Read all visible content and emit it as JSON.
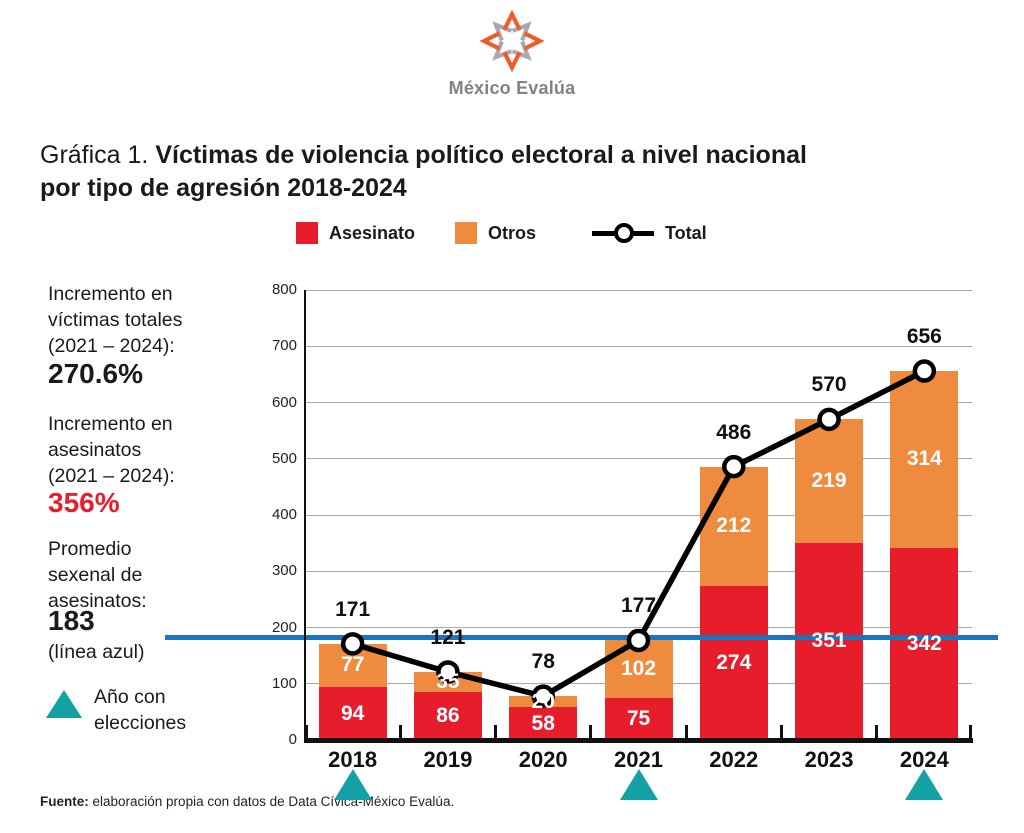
{
  "brand": {
    "name": "México Evalúa"
  },
  "title": {
    "prefix": "Gráfica 1. ",
    "bold_line1": "Víctimas de violencia político electoral a nivel nacional",
    "bold_line2": "por tipo de agresión 2018-2024"
  },
  "legend": {
    "asesinato": "Asesinato",
    "otros": "Otros",
    "total": "Total"
  },
  "annotations": {
    "block1_label": "Incremento en\nvíctimas totales\n(2021 – 2024):",
    "block1_value": "270.6%",
    "block2_label": "Incremento en\nasesinatos\n(2021 – 2024):",
    "block2_value": "356%",
    "block3_label": "Promedio\nsexenal de\nasesinatos:",
    "block3_value": "183",
    "block3_suffix": "(línea azul)",
    "election_label": "Año con\nelecciones"
  },
  "footer": {
    "bold": "Fuente:",
    "text": " elaboración propia con datos de Data Cívica-México Evalúa."
  },
  "colors": {
    "asesinato": "#E71D2C",
    "otros": "#EF8B3E",
    "total_line": "#000000",
    "average_line": "#1C75BC",
    "election_marker": "#14A1A6",
    "gridline": "#A9A9A9",
    "logo_orange": "#F15A29",
    "logo_gray": "#A7A9AC"
  },
  "chart_data": {
    "type": "bar",
    "stacked": true,
    "title": "Víctimas de violencia político electoral a nivel nacional por tipo de agresión 2018-2024",
    "categories": [
      "2018",
      "2019",
      "2020",
      "2021",
      "2022",
      "2023",
      "2024"
    ],
    "series": [
      {
        "name": "Asesinato",
        "values": [
          94,
          86,
          58,
          75,
          274,
          351,
          342
        ]
      },
      {
        "name": "Otros",
        "values": [
          77,
          35,
          20,
          102,
          212,
          219,
          314
        ]
      }
    ],
    "total_line": {
      "name": "Total",
      "values": [
        171,
        121,
        78,
        177,
        486,
        570,
        656
      ]
    },
    "average_line": {
      "value": 183,
      "label": "(línea azul)"
    },
    "election_years": [
      "2018",
      "2021",
      "2024"
    ],
    "ylim": [
      0,
      800
    ],
    "y_tick_step": 100,
    "grid": true,
    "legend_position": "top"
  }
}
